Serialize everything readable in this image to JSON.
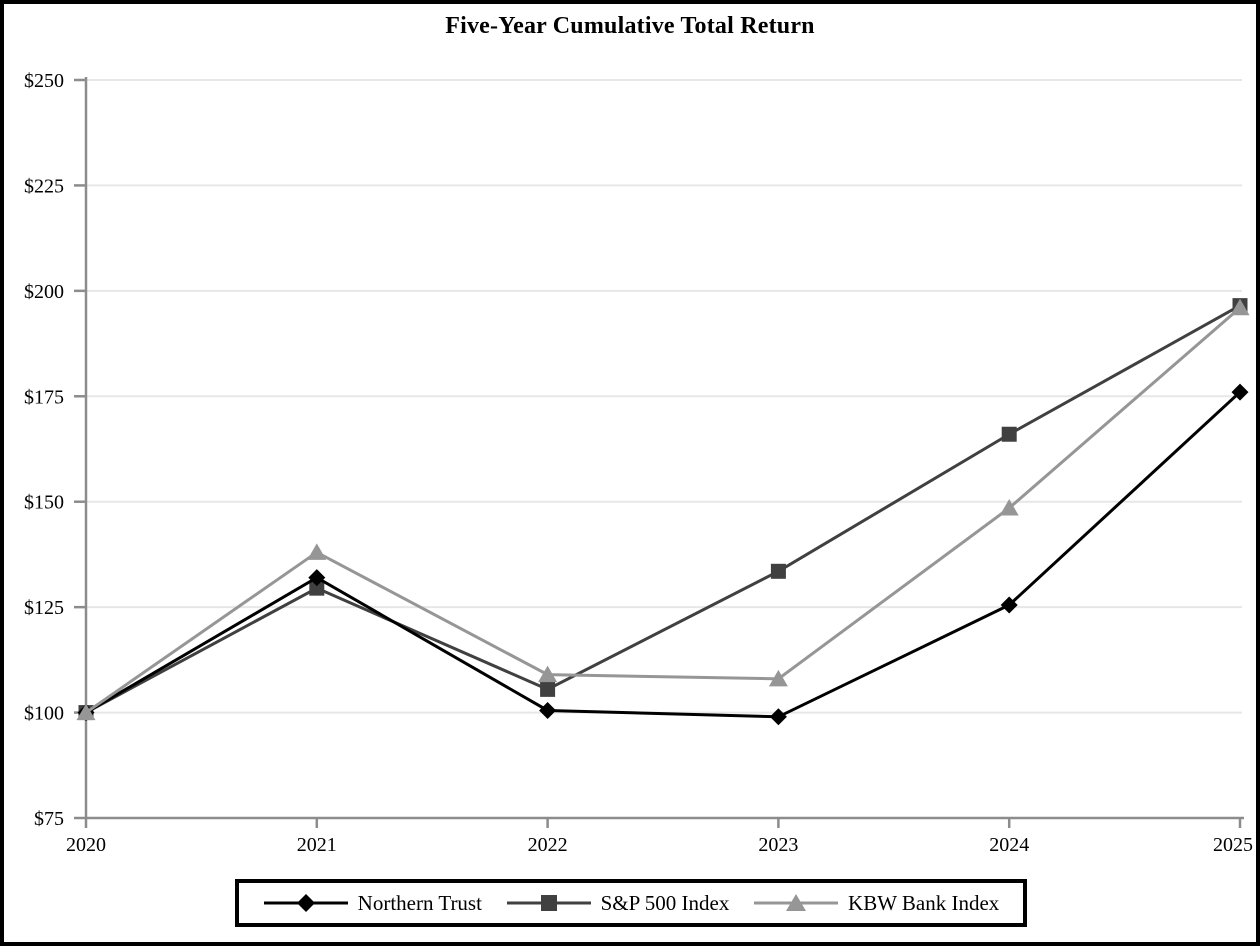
{
  "chart_data": {
    "type": "line",
    "title": "Five-Year Cumulative Total Return",
    "xlabel": "",
    "ylabel": "",
    "categories": [
      "2020",
      "2021",
      "2022",
      "2023",
      "2024",
      "2025"
    ],
    "series": [
      {
        "name": "Northern Trust",
        "color": "#000000",
        "marker": "diamond",
        "values": [
          100,
          132,
          100.5,
          99,
          125.5,
          176
        ]
      },
      {
        "name": "S&P 500 Index",
        "color": "#404040",
        "marker": "square",
        "values": [
          100,
          129.5,
          105.5,
          133.5,
          166,
          196.5
        ]
      },
      {
        "name": "KBW Bank Index",
        "color": "#969696",
        "marker": "triangle",
        "values": [
          100,
          138,
          109,
          108,
          148.5,
          196
        ]
      }
    ],
    "ylim": [
      75,
      250
    ],
    "y_ticks": [
      {
        "value": 75,
        "label": "$75"
      },
      {
        "value": 100,
        "label": "$100"
      },
      {
        "value": 125,
        "label": "$125"
      },
      {
        "value": 150,
        "label": "$150"
      },
      {
        "value": 175,
        "label": "$175"
      },
      {
        "value": 200,
        "label": "$200"
      },
      {
        "value": 225,
        "label": "$225"
      },
      {
        "value": 250,
        "label": "$250"
      }
    ],
    "grid": "horizontal",
    "legend_position": "bottom",
    "axis_color": "#8c8c8c",
    "gridline_color": "#e7e7e7"
  }
}
